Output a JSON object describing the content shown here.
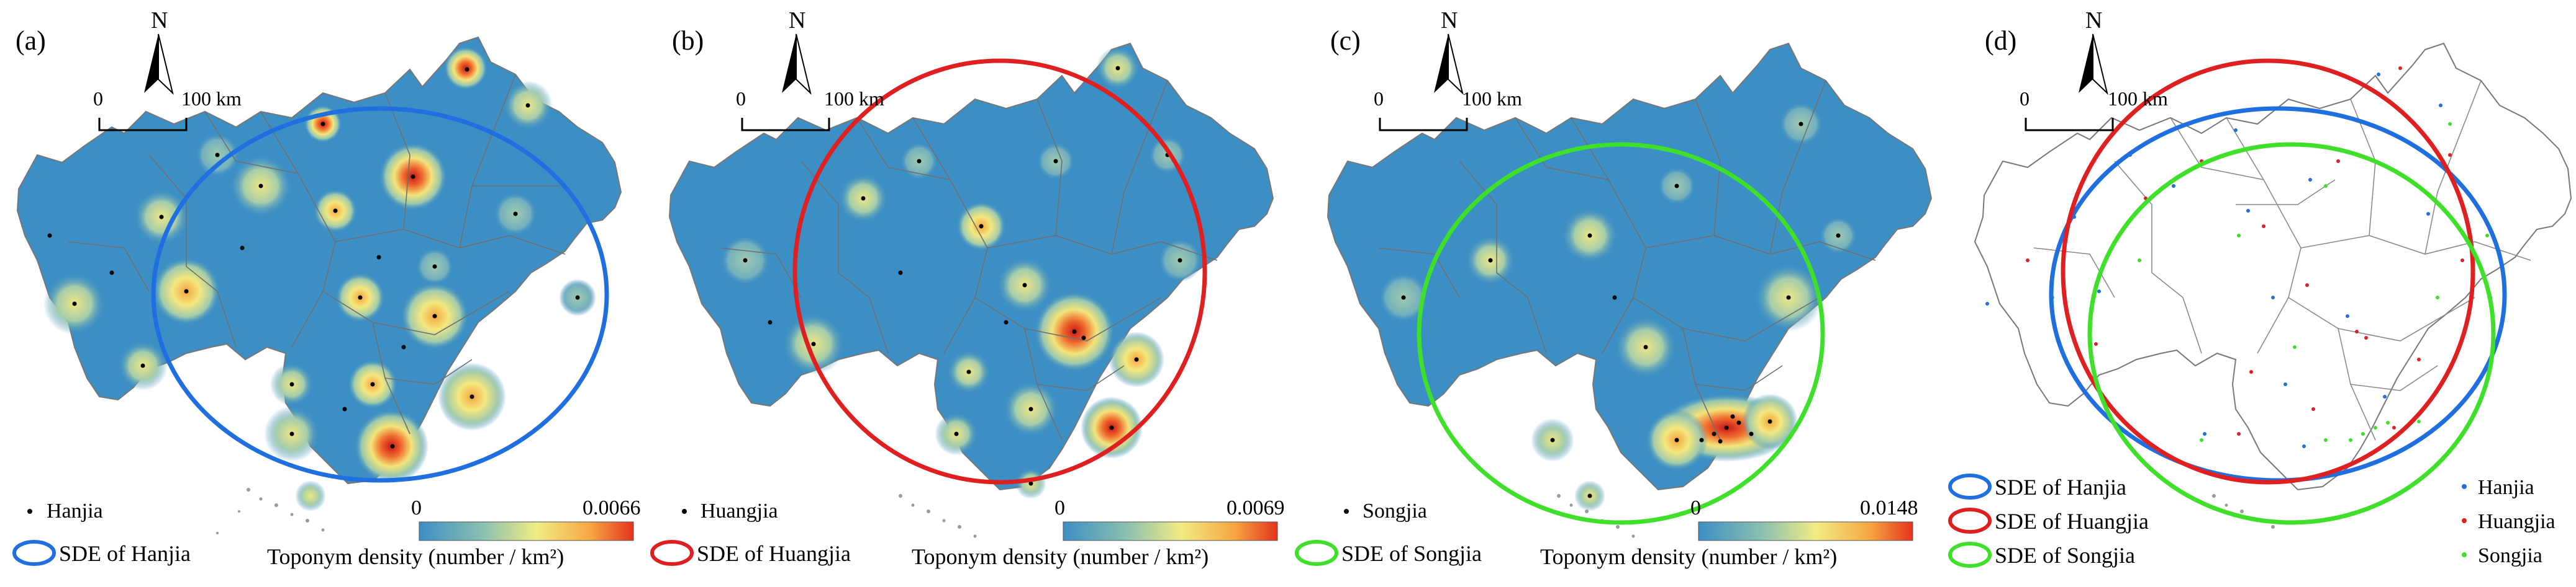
{
  "panels": [
    {
      "letter": "(a)",
      "north": "N",
      "scale_zero": "0",
      "scale_max": "100 km",
      "point_legend": "Hanjia",
      "ellipse_legend": "SDE of Hanjia",
      "colorbar_min": "0",
      "colorbar_max": "0.0066",
      "colorbar_label": "Toponym density (number / km²)",
      "ellipse_color": "#1f6fe0"
    },
    {
      "letter": "(b)",
      "north": "N",
      "scale_zero": "0",
      "scale_max": "100 km",
      "point_legend": "Huangjia",
      "ellipse_legend": "SDE of Huangjia",
      "colorbar_min": "0",
      "colorbar_max": "0.0069",
      "colorbar_label": "Toponym density (number / km²)",
      "ellipse_color": "#e02020"
    },
    {
      "letter": "(c)",
      "north": "N",
      "scale_zero": "0",
      "scale_max": "100 km",
      "point_legend": "Songjia",
      "ellipse_legend": "SDE of Songjia",
      "colorbar_min": "0",
      "colorbar_max": "0.0148",
      "colorbar_label": "Toponym density (number / km²)",
      "ellipse_color": "#3fe02a"
    },
    {
      "letter": "(d)",
      "north": "N",
      "scale_zero": "0",
      "scale_max": "100 km",
      "sde_legend": [
        {
          "label": "SDE of Hanjia",
          "color": "#1f6fe0"
        },
        {
          "label": "SDE of Huangjia",
          "color": "#e02020"
        },
        {
          "label": "SDE of Songjia",
          "color": "#3fe02a"
        }
      ],
      "point_legend": [
        {
          "label": "Hanjia",
          "color": "#1f6fe0"
        },
        {
          "label": "Huangjia",
          "color": "#e02020"
        },
        {
          "label": "Songjia",
          "color": "#3fe02a"
        }
      ]
    }
  ],
  "colors": {
    "map_base": "#3c8fc4",
    "boundary": "#6f6f6f",
    "ramp": [
      "#3c8fc4",
      "#8cc0b0",
      "#f2ec84",
      "#f6a643",
      "#e4331d"
    ]
  }
}
